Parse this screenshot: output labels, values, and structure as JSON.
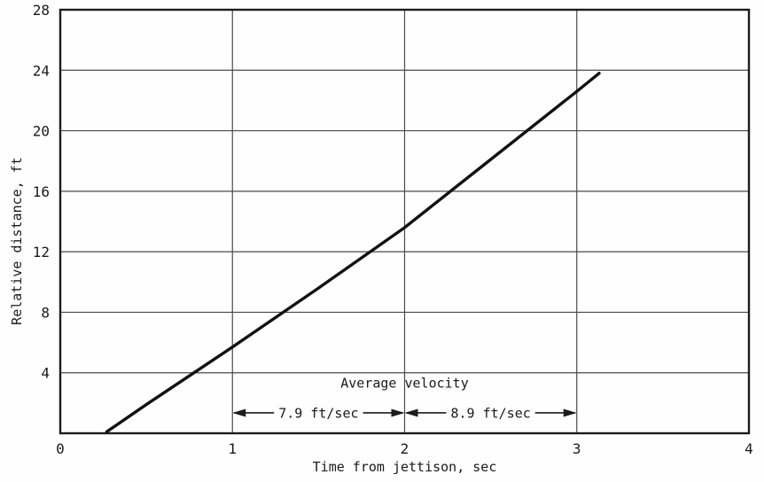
{
  "chart_data": {
    "type": "line",
    "title": "",
    "xlabel": "Time from jettison, sec",
    "ylabel": "Relative distance, ft",
    "xlim": [
      0,
      4
    ],
    "ylim": [
      0,
      28
    ],
    "xticks": [
      0,
      1,
      2,
      3,
      4
    ],
    "yticks": [
      4,
      8,
      12,
      16,
      20,
      24,
      28
    ],
    "grid": true,
    "legend": "none",
    "line_color": "#111111",
    "grid_color": "#4a4a4a",
    "frame_color": "#1c1c1c",
    "series": [
      {
        "name": "relative-distance-vs-time",
        "x": [
          0.27,
          0.5,
          1.0,
          1.5,
          2.0,
          2.5,
          3.0,
          3.13
        ],
        "y": [
          0.1,
          1.9,
          5.7,
          9.6,
          13.6,
          18.1,
          22.6,
          23.8
        ]
      }
    ],
    "annotations": {
      "average_velocity_label": "Average velocity",
      "average_velocity_label_x": 2.0,
      "average_velocity_label_y": 3.3,
      "segments_y": 1.35,
      "segments": [
        {
          "label": "7.9 ft/sec",
          "x_start": 1,
          "x_end": 2
        },
        {
          "label": "8.9 ft/sec",
          "x_start": 2,
          "x_end": 3
        }
      ]
    }
  }
}
